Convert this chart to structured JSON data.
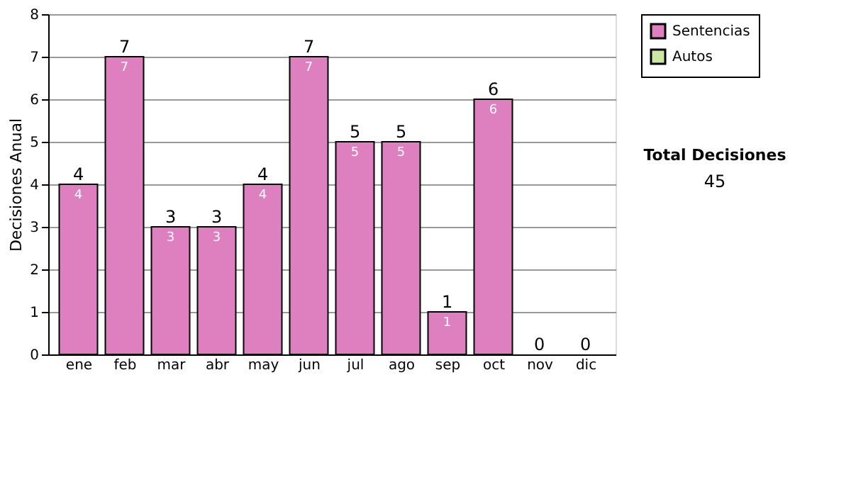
{
  "chart_data": {
    "type": "bar",
    "stacked": true,
    "ylabel": "Decisiones Anual",
    "categories": [
      "ene",
      "feb",
      "mar",
      "abr",
      "may",
      "jun",
      "jul",
      "ago",
      "sep",
      "oct",
      "nov",
      "dic"
    ],
    "series": [
      {
        "name": "Sentencias",
        "color": "#de7fc0",
        "values": [
          4,
          7,
          3,
          3,
          4,
          7,
          5,
          5,
          1,
          6,
          0,
          0
        ],
        "value_labels": [
          "4",
          "7",
          "3",
          "3",
          "4",
          "7",
          "5",
          "5",
          "1",
          "6",
          null,
          null
        ]
      },
      {
        "name": "Autos",
        "color": "#cce8a0",
        "values": [
          0,
          0,
          0,
          0,
          0,
          0,
          0,
          0,
          0,
          0,
          0,
          0
        ]
      }
    ],
    "totals": [
      "4",
      "7",
      "3",
      "3",
      "4",
      "7",
      "5",
      "5",
      "1",
      "6",
      "0",
      "0"
    ],
    "ylim": [
      0,
      8
    ],
    "yticks": [
      0,
      1,
      2,
      3,
      4,
      5,
      6,
      7,
      8
    ],
    "grid": "y",
    "legend": "right",
    "annotations": [
      "Total Decisiones",
      "45"
    ]
  }
}
